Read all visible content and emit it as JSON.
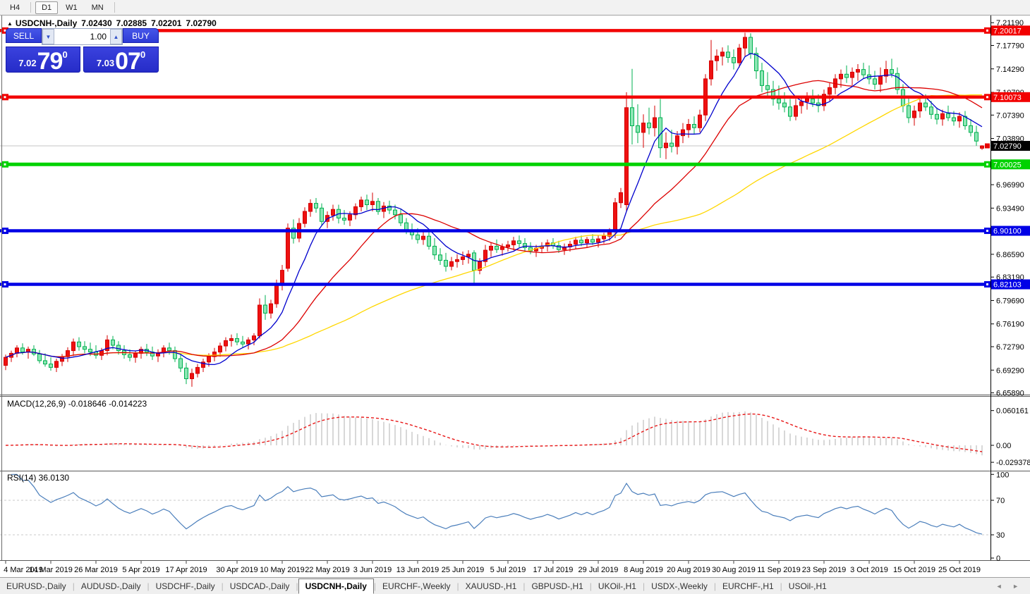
{
  "toolbar": {
    "periods": [
      "H4",
      "D1",
      "W1",
      "MN"
    ],
    "active": "D1"
  },
  "chart_header": {
    "collapse_icon": "▲",
    "title": "USDCNH-,Daily",
    "open": "7.02430",
    "high": "7.02885",
    "low": "7.02201",
    "close": "7.02790"
  },
  "trade_panel": {
    "sell_label": "SELL",
    "buy_label": "BUY",
    "volume": "1.00",
    "down_icon": "▼",
    "up_icon": "▲",
    "sell_price": {
      "small": "7.02",
      "big": "79",
      "sup": "0"
    },
    "buy_price": {
      "small": "7.03",
      "big": "07",
      "sup": "0"
    }
  },
  "bottom_tabs": {
    "items": [
      "EURUSD-,Daily",
      "AUDUSD-,Daily",
      "USDCHF-,Daily",
      "USDCAD-,Daily",
      "USDCNH-,Daily",
      "EURCHF-,Weekly",
      "XAUUSD-,H1",
      "GBPUSD-,H1",
      "UKOil-,H1",
      "USDX-,Weekly",
      "EURCHF-,H1",
      "USOil-,H1"
    ],
    "active_index": 4,
    "scroll_left_icon": "◄",
    "scroll_right_icon": "►"
  },
  "chart_data": {
    "type": "candlestick",
    "symbol": "USDCNH-",
    "timeframe": "Daily",
    "last_ohlc": {
      "open": 7.0243,
      "high": 7.02885,
      "low": 7.02201,
      "close": 7.0279
    },
    "colors": {
      "up": "#ee1111",
      "up_border": "#d40000",
      "down": "#8ce6b4",
      "down_border": "#00b050"
    },
    "price_axis_ticks": [
      "7.21190",
      "7.17790",
      "7.14290",
      "7.10790",
      "7.07390",
      "7.03890",
      "7.00390",
      "6.96990",
      "6.93490",
      "6.89990",
      "6.86590",
      "6.83190",
      "6.79690",
      "6.76190",
      "6.72790",
      "6.69290",
      "6.65890"
    ],
    "price_badges": [
      {
        "label": "7.20017",
        "price": 7.20017,
        "bg": "#f20000",
        "fg": "#ffffff",
        "marker": true
      },
      {
        "label": "7.10073",
        "price": 7.10073,
        "bg": "#f20000",
        "fg": "#ffffff",
        "marker": true
      },
      {
        "label": "7.02790",
        "price": 7.0279,
        "bg": "#000000",
        "fg": "#ffffff",
        "marker": false,
        "arrow": "#e60000"
      },
      {
        "label": "7.00025",
        "price": 7.00025,
        "bg": "#00d200",
        "fg": "#ffffff",
        "marker": true
      },
      {
        "label": "6.90100",
        "price": 6.901,
        "bg": "#0000e6",
        "fg": "#ffffff",
        "marker": true
      },
      {
        "label": "6.82103",
        "price": 6.82103,
        "bg": "#0000e6",
        "fg": "#ffffff",
        "marker": true
      }
    ],
    "horizontal_lines": [
      {
        "price": 7.20017,
        "color": "#f20000",
        "width": 4.5
      },
      {
        "price": 7.10073,
        "color": "#f20000",
        "width": 4.5
      },
      {
        "price": 7.00025,
        "color": "#00d200",
        "width": 5
      },
      {
        "price": 6.901,
        "color": "#0000e6",
        "width": 4.5
      },
      {
        "price": 6.82103,
        "color": "#0000e6",
        "width": 4.5
      }
    ],
    "current_price_line": {
      "price": 7.0279,
      "color": "#c4c4c4"
    },
    "moving_averages": [
      {
        "period": 55,
        "color": "#ffd700"
      },
      {
        "period": 21,
        "color": "#dc0000"
      },
      {
        "period": 8,
        "color": "#0000cd"
      }
    ],
    "macd": {
      "label": "MACD(12,26,9) -0.018646 -0.014223",
      "fast": 12,
      "slow": 26,
      "signal": 9,
      "value": -0.018646,
      "signal_value": -0.014223,
      "axis_ticks": [
        "0.060161",
        "0.00",
        "-0.029378"
      ],
      "hist_color": "#c8c8c8",
      "signal_color": "#e81818"
    },
    "rsi": {
      "label": "RSI(14) 36.0130",
      "period": 14,
      "value": 36.013,
      "axis_ticks": [
        "100",
        "70",
        "30",
        "0"
      ],
      "levels": [
        70,
        30
      ],
      "color": "#4a7ebb"
    },
    "date_labels": [
      {
        "i": 0,
        "label": "4 Mar 2019"
      },
      {
        "i": 8,
        "label": "14 Mar 2019"
      },
      {
        "i": 16,
        "label": "26 Mar 2019"
      },
      {
        "i": 24,
        "label": "5 Apr 2019"
      },
      {
        "i": 32,
        "label": "17 Apr 2019"
      },
      {
        "i": 41,
        "label": "30 Apr 2019"
      },
      {
        "i": 49,
        "label": "10 May 2019"
      },
      {
        "i": 57,
        "label": "22 May 2019"
      },
      {
        "i": 65,
        "label": "3 Jun 2019"
      },
      {
        "i": 73,
        "label": "13 Jun 2019"
      },
      {
        "i": 81,
        "label": "25 Jun 2019"
      },
      {
        "i": 89,
        "label": "5 Jul 2019"
      },
      {
        "i": 97,
        "label": "17 Jul 2019"
      },
      {
        "i": 105,
        "label": "29 Jul 2019"
      },
      {
        "i": 113,
        "label": "8 Aug 2019"
      },
      {
        "i": 121,
        "label": "20 Aug 2019"
      },
      {
        "i": 129,
        "label": "30 Aug 2019"
      },
      {
        "i": 137,
        "label": "11 Sep 2019"
      },
      {
        "i": 145,
        "label": "23 Sep 2019"
      },
      {
        "i": 153,
        "label": "3 Oct 2019"
      },
      {
        "i": 161,
        "label": "15 Oct 2019"
      },
      {
        "i": 169,
        "label": "25 Oct 2019"
      }
    ],
    "candles": [
      [
        6.7,
        6.716,
        6.693,
        6.712
      ],
      [
        6.712,
        6.722,
        6.705,
        6.718
      ],
      [
        6.718,
        6.73,
        6.712,
        6.726
      ],
      [
        6.726,
        6.733,
        6.716,
        6.72
      ],
      [
        6.72,
        6.728,
        6.71,
        6.724
      ],
      [
        6.724,
        6.73,
        6.714,
        6.717
      ],
      [
        6.717,
        6.723,
        6.703,
        6.707
      ],
      [
        6.707,
        6.718,
        6.698,
        6.702
      ],
      [
        6.702,
        6.712,
        6.692,
        6.697
      ],
      [
        6.697,
        6.71,
        6.69,
        6.706
      ],
      [
        6.706,
        6.717,
        6.699,
        6.713
      ],
      [
        6.713,
        6.727,
        6.705,
        6.722
      ],
      [
        6.722,
        6.74,
        6.714,
        6.735
      ],
      [
        6.735,
        6.742,
        6.722,
        6.728
      ],
      [
        6.728,
        6.736,
        6.718,
        6.724
      ],
      [
        6.724,
        6.734,
        6.714,
        6.72
      ],
      [
        6.72,
        6.73,
        6.71,
        6.715
      ],
      [
        6.715,
        6.726,
        6.708,
        6.722
      ],
      [
        6.722,
        6.745,
        6.715,
        6.738
      ],
      [
        6.738,
        6.744,
        6.724,
        6.73
      ],
      [
        6.73,
        6.736,
        6.716,
        6.722
      ],
      [
        6.722,
        6.73,
        6.71,
        6.716
      ],
      [
        6.716,
        6.724,
        6.706,
        6.712
      ],
      [
        6.712,
        6.722,
        6.704,
        6.718
      ],
      [
        6.718,
        6.728,
        6.71,
        6.724
      ],
      [
        6.724,
        6.732,
        6.714,
        6.72
      ],
      [
        6.72,
        6.728,
        6.708,
        6.714
      ],
      [
        6.714,
        6.724,
        6.705,
        6.719
      ],
      [
        6.719,
        6.73,
        6.712,
        6.726
      ],
      [
        6.726,
        6.734,
        6.716,
        6.722
      ],
      [
        6.722,
        6.728,
        6.705,
        6.71
      ],
      [
        6.71,
        6.716,
        6.69,
        6.696
      ],
      [
        6.696,
        6.704,
        6.672,
        6.68
      ],
      [
        6.68,
        6.695,
        6.668,
        6.688
      ],
      [
        6.688,
        6.702,
        6.682,
        6.697
      ],
      [
        6.697,
        6.71,
        6.69,
        6.705
      ],
      [
        6.705,
        6.718,
        6.698,
        6.713
      ],
      [
        6.713,
        6.726,
        6.706,
        6.72
      ],
      [
        6.72,
        6.734,
        6.713,
        6.729
      ],
      [
        6.729,
        6.742,
        6.721,
        6.737
      ],
      [
        6.737,
        6.746,
        6.728,
        6.74
      ],
      [
        6.74,
        6.748,
        6.73,
        6.735
      ],
      [
        6.735,
        6.744,
        6.726,
        6.732
      ],
      [
        6.732,
        6.742,
        6.724,
        6.738
      ],
      [
        6.738,
        6.748,
        6.73,
        6.744
      ],
      [
        6.744,
        6.8,
        6.74,
        6.79
      ],
      [
        6.79,
        6.805,
        6.768,
        6.778
      ],
      [
        6.778,
        6.798,
        6.77,
        6.792
      ],
      [
        6.792,
        6.828,
        6.786,
        6.82
      ],
      [
        6.82,
        6.85,
        6.812,
        6.842
      ],
      [
        6.845,
        6.912,
        6.84,
        6.905
      ],
      [
        6.905,
        6.918,
        6.882,
        6.89
      ],
      [
        6.89,
        6.92,
        6.884,
        6.912
      ],
      [
        6.912,
        6.936,
        6.906,
        6.93
      ],
      [
        6.93,
        6.948,
        6.922,
        6.942
      ],
      [
        6.942,
        6.95,
        6.928,
        6.935
      ],
      [
        6.935,
        6.942,
        6.908,
        6.915
      ],
      [
        6.915,
        6.93,
        6.905,
        6.924
      ],
      [
        6.924,
        6.94,
        6.916,
        6.933
      ],
      [
        6.933,
        6.94,
        6.912,
        6.92
      ],
      [
        6.92,
        6.932,
        6.91,
        6.917
      ],
      [
        6.917,
        6.93,
        6.908,
        6.925
      ],
      [
        6.925,
        6.942,
        6.918,
        6.937
      ],
      [
        6.937,
        6.952,
        6.93,
        6.947
      ],
      [
        6.947,
        6.955,
        6.932,
        6.94
      ],
      [
        6.94,
        6.958,
        6.93,
        6.945
      ],
      [
        6.945,
        6.95,
        6.925,
        6.93
      ],
      [
        6.93,
        6.944,
        6.92,
        6.938
      ],
      [
        6.938,
        6.946,
        6.926,
        6.932
      ],
      [
        6.932,
        6.94,
        6.918,
        6.925
      ],
      [
        6.925,
        6.934,
        6.908,
        6.913
      ],
      [
        6.913,
        6.92,
        6.896,
        6.902
      ],
      [
        6.902,
        6.912,
        6.888,
        6.895
      ],
      [
        6.895,
        6.905,
        6.882,
        6.888
      ],
      [
        6.888,
        6.9,
        6.88,
        6.893
      ],
      [
        6.893,
        6.902,
        6.873,
        6.878
      ],
      [
        6.878,
        6.89,
        6.858,
        6.865
      ],
      [
        6.865,
        6.875,
        6.85,
        6.857
      ],
      [
        6.857,
        6.868,
        6.84,
        6.848
      ],
      [
        6.848,
        6.862,
        6.842,
        6.855
      ],
      [
        6.855,
        6.866,
        6.846,
        6.858
      ],
      [
        6.858,
        6.87,
        6.85,
        6.862
      ],
      [
        6.862,
        6.872,
        6.852,
        6.866
      ],
      [
        6.868,
        6.872,
        6.82,
        6.842
      ],
      [
        6.842,
        6.86,
        6.836,
        6.855
      ],
      [
        6.855,
        6.88,
        6.848,
        6.872
      ],
      [
        6.872,
        6.884,
        6.862,
        6.878
      ],
      [
        6.878,
        6.888,
        6.868,
        6.873
      ],
      [
        6.873,
        6.882,
        6.864,
        6.877
      ],
      [
        6.877,
        6.886,
        6.87,
        6.88
      ],
      [
        6.88,
        6.892,
        6.872,
        6.886
      ],
      [
        6.886,
        6.894,
        6.876,
        6.882
      ],
      [
        6.882,
        6.89,
        6.87,
        6.876
      ],
      [
        6.876,
        6.884,
        6.866,
        6.871
      ],
      [
        6.871,
        6.88,
        6.862,
        6.875
      ],
      [
        6.875,
        6.884,
        6.868,
        6.878
      ],
      [
        6.878,
        6.888,
        6.87,
        6.883
      ],
      [
        6.883,
        6.89,
        6.874,
        6.879
      ],
      [
        6.879,
        6.886,
        6.868,
        6.873
      ],
      [
        6.873,
        6.882,
        6.865,
        6.877
      ],
      [
        6.877,
        6.886,
        6.87,
        6.881
      ],
      [
        6.881,
        6.892,
        6.874,
        6.887
      ],
      [
        6.887,
        6.894,
        6.878,
        6.883
      ],
      [
        6.883,
        6.892,
        6.876,
        6.888
      ],
      [
        6.888,
        6.896,
        6.88,
        6.884
      ],
      [
        6.884,
        6.894,
        6.876,
        6.889
      ],
      [
        6.889,
        6.898,
        6.882,
        6.893
      ],
      [
        6.893,
        6.905,
        6.886,
        6.9
      ],
      [
        6.9,
        6.95,
        6.89,
        6.943
      ],
      [
        6.943,
        6.965,
        6.935,
        6.958
      ],
      [
        6.94,
        7.108,
        6.93,
        7.085
      ],
      [
        7.085,
        7.143,
        7.03,
        7.058
      ],
      [
        7.058,
        7.09,
        7.032,
        7.048
      ],
      [
        7.048,
        7.075,
        7.025,
        7.062
      ],
      [
        7.062,
        7.085,
        7.045,
        7.055
      ],
      [
        7.055,
        7.088,
        7.042,
        7.07
      ],
      [
        7.07,
        7.098,
        7.01,
        7.025
      ],
      [
        7.025,
        7.048,
        7.008,
        7.032
      ],
      [
        7.032,
        7.052,
        7.018,
        7.027
      ],
      [
        7.027,
        7.05,
        7.015,
        7.043
      ],
      [
        7.043,
        7.062,
        7.032,
        7.052
      ],
      [
        7.052,
        7.068,
        7.04,
        7.06
      ],
      [
        7.06,
        7.072,
        7.045,
        7.055
      ],
      [
        7.055,
        7.082,
        7.048,
        7.074
      ],
      [
        7.074,
        7.135,
        7.065,
        7.128
      ],
      [
        7.128,
        7.186,
        7.118,
        7.155
      ],
      [
        7.155,
        7.172,
        7.14,
        7.162
      ],
      [
        7.162,
        7.175,
        7.148,
        7.168
      ],
      [
        7.168,
        7.178,
        7.152,
        7.16
      ],
      [
        7.16,
        7.172,
        7.142,
        7.152
      ],
      [
        7.152,
        7.18,
        7.145,
        7.174
      ],
      [
        7.174,
        7.197,
        7.162,
        7.19
      ],
      [
        7.19,
        7.196,
        7.158,
        7.166
      ],
      [
        7.166,
        7.175,
        7.128,
        7.14
      ],
      [
        7.14,
        7.152,
        7.108,
        7.118
      ],
      [
        7.118,
        7.138,
        7.102,
        7.112
      ],
      [
        7.112,
        7.125,
        7.088,
        7.098
      ],
      [
        7.098,
        7.118,
        7.082,
        7.092
      ],
      [
        7.092,
        7.108,
        7.078,
        7.086
      ],
      [
        7.086,
        7.098,
        7.065,
        7.072
      ],
      [
        7.072,
        7.098,
        7.066,
        7.088
      ],
      [
        7.088,
        7.102,
        7.076,
        7.094
      ],
      [
        7.094,
        7.108,
        7.082,
        7.098
      ],
      [
        7.098,
        7.112,
        7.086,
        7.092
      ],
      [
        7.092,
        7.105,
        7.078,
        7.088
      ],
      [
        7.088,
        7.112,
        7.08,
        7.105
      ],
      [
        7.105,
        7.122,
        7.095,
        7.115
      ],
      [
        7.115,
        7.135,
        7.105,
        7.128
      ],
      [
        7.128,
        7.142,
        7.115,
        7.135
      ],
      [
        7.135,
        7.148,
        7.122,
        7.13
      ],
      [
        7.13,
        7.145,
        7.118,
        7.138
      ],
      [
        7.138,
        7.15,
        7.125,
        7.142
      ],
      [
        7.142,
        7.152,
        7.128,
        7.134
      ],
      [
        7.134,
        7.148,
        7.12,
        7.128
      ],
      [
        7.128,
        7.14,
        7.112,
        7.12
      ],
      [
        7.12,
        7.145,
        7.108,
        7.132
      ],
      [
        7.132,
        7.155,
        7.122,
        7.142
      ],
      [
        7.142,
        7.158,
        7.13,
        7.136
      ],
      [
        7.136,
        7.145,
        7.105,
        7.112
      ],
      [
        7.112,
        7.12,
        7.078,
        7.088
      ],
      [
        7.088,
        7.102,
        7.062,
        7.07
      ],
      [
        7.07,
        7.088,
        7.058,
        7.08
      ],
      [
        7.08,
        7.098,
        7.07,
        7.092
      ],
      [
        7.092,
        7.105,
        7.08,
        7.086
      ],
      [
        7.086,
        7.095,
        7.068,
        7.075
      ],
      [
        7.075,
        7.085,
        7.06,
        7.068
      ],
      [
        7.068,
        7.082,
        7.058,
        7.076
      ],
      [
        7.076,
        7.088,
        7.065,
        7.07
      ],
      [
        7.07,
        7.08,
        7.058,
        7.065
      ],
      [
        7.065,
        7.078,
        7.055,
        7.072
      ],
      [
        7.072,
        7.08,
        7.052,
        7.058
      ],
      [
        7.058,
        7.068,
        7.042,
        7.048
      ],
      [
        7.048,
        7.058,
        7.028,
        7.035
      ],
      [
        7.0243,
        7.02885,
        7.02201,
        7.0279
      ]
    ]
  }
}
